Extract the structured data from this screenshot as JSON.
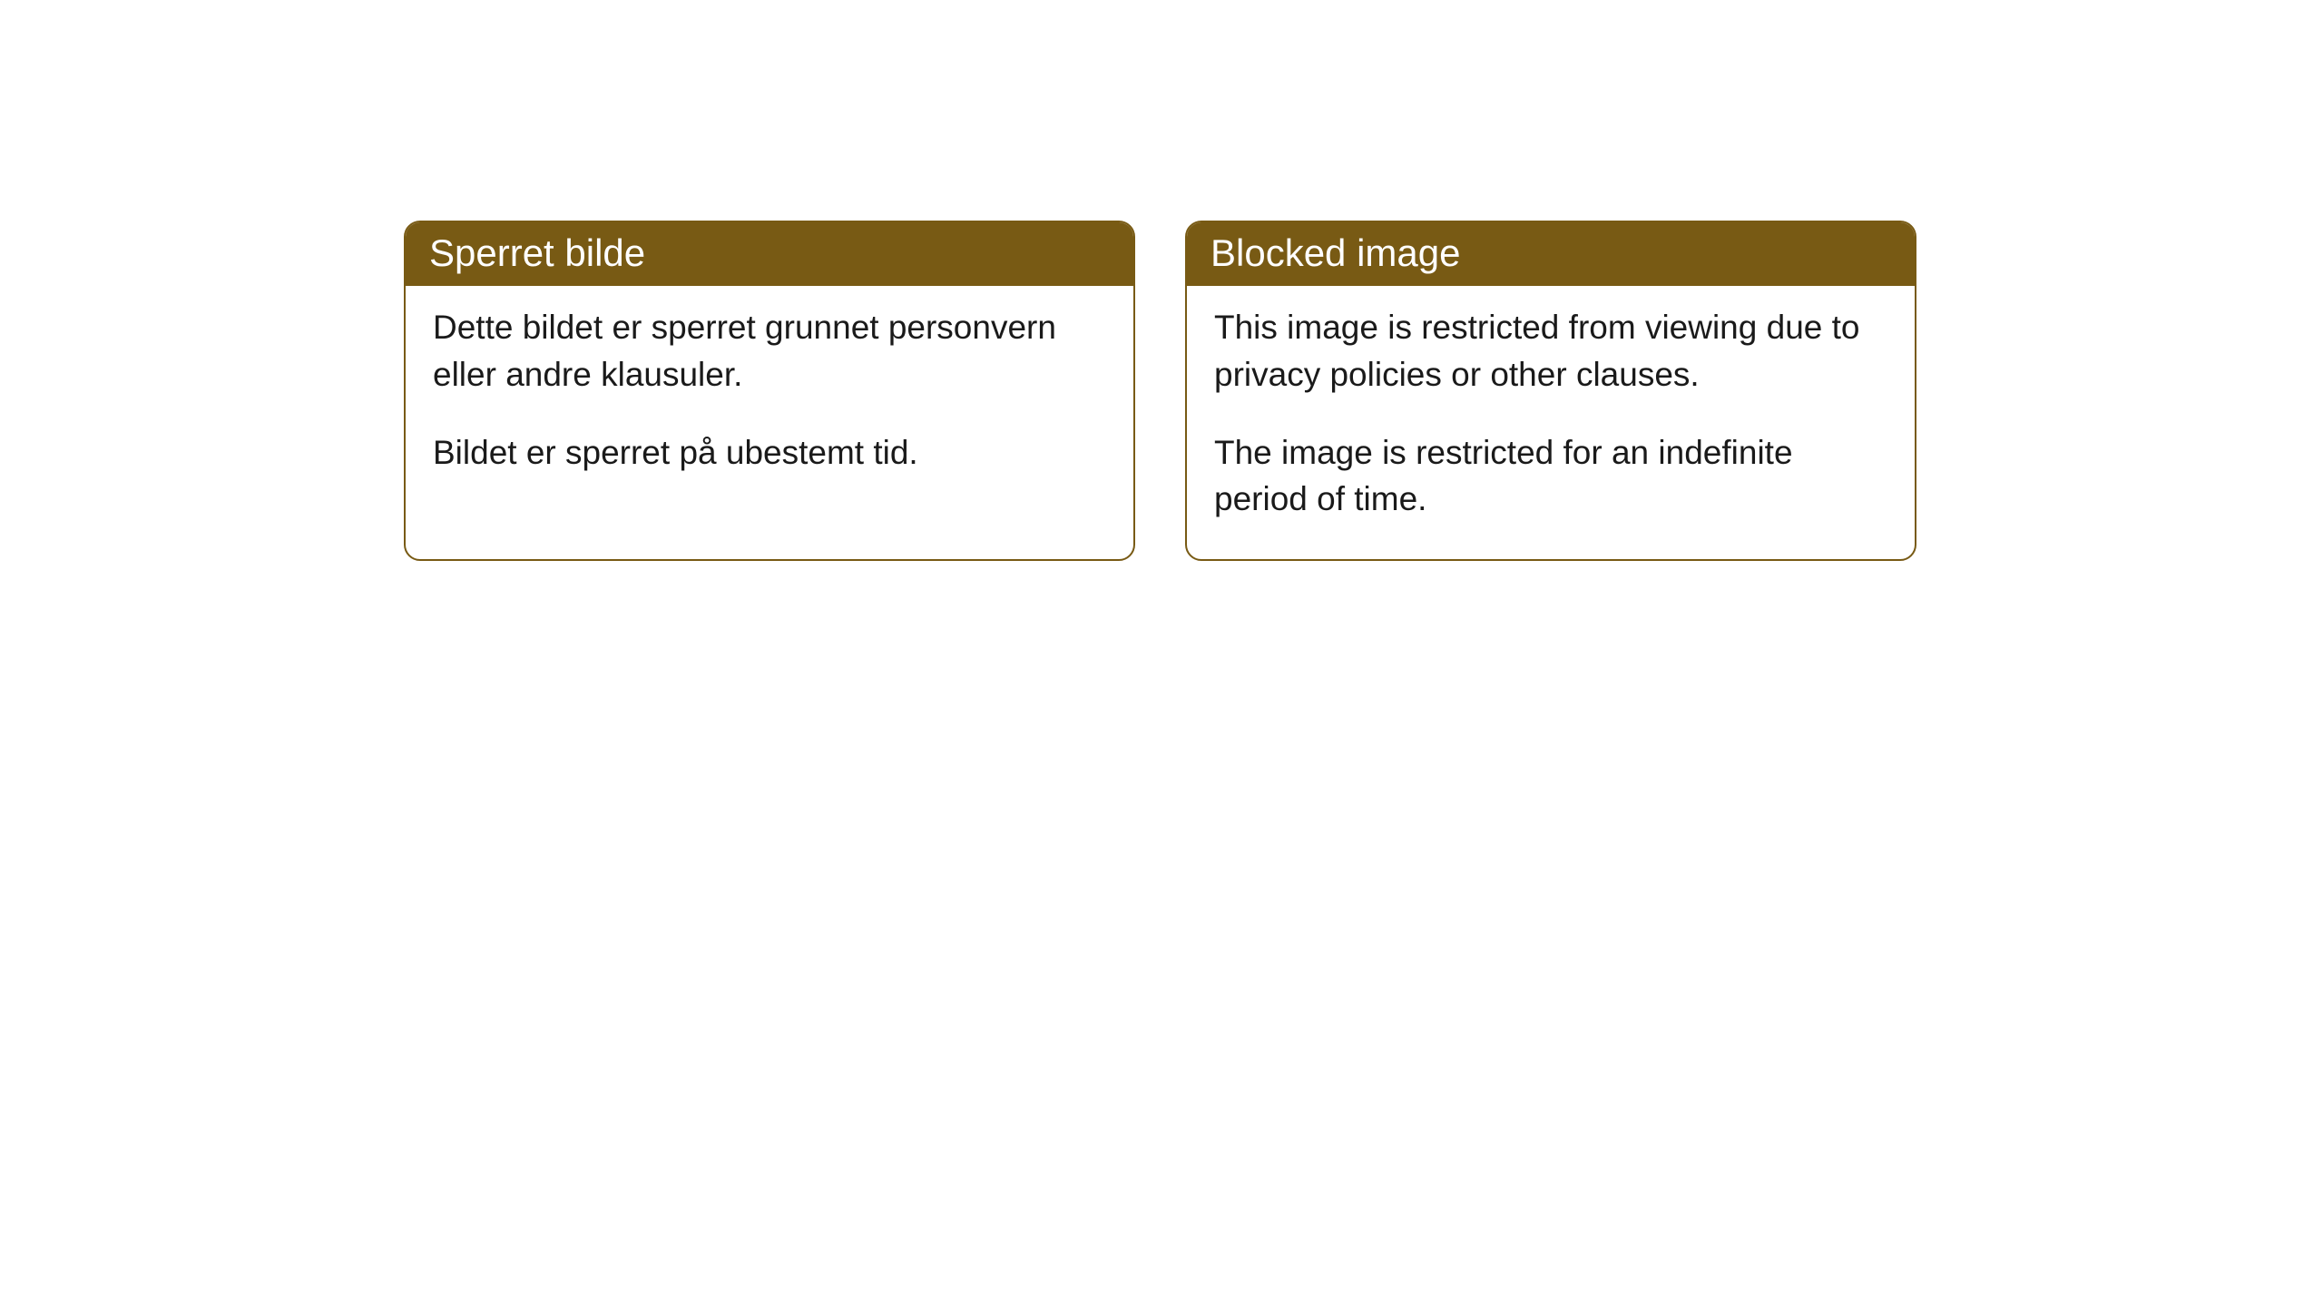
{
  "cards": [
    {
      "title": "Sperret bilde",
      "paragraph1": "Dette bildet er sperret grunnet personvern eller andre klausuler.",
      "paragraph2": "Bildet er sperret på ubestemt tid."
    },
    {
      "title": "Blocked image",
      "paragraph1": "This image is restricted from viewing due to privacy policies or other clauses.",
      "paragraph2": "The image is restricted for an indefinite period of time."
    }
  ],
  "styling": {
    "header_background_color": "#785a14",
    "header_text_color": "#ffffff",
    "card_border_color": "#785a14",
    "card_background_color": "#ffffff",
    "body_text_color": "#1a1a1a",
    "page_background_color": "#ffffff",
    "header_fontsize": 42,
    "body_fontsize": 37,
    "border_radius": 18,
    "border_width": 2
  }
}
